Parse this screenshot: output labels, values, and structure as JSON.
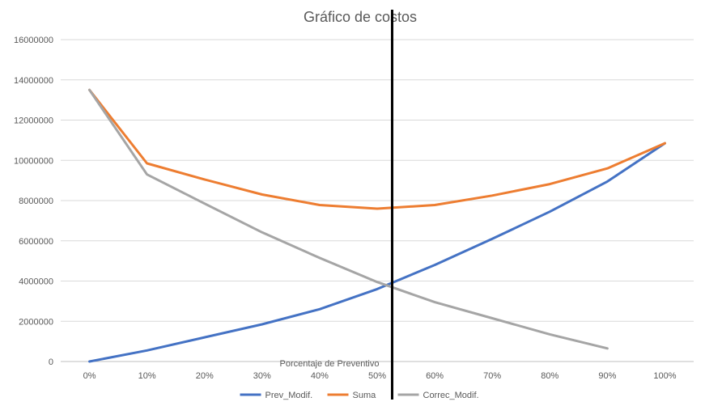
{
  "chart_data": {
    "type": "line",
    "title": "Gráfico de costos",
    "xlabel": "Porcentaje de Preventivo",
    "ylabel": "",
    "categories": [
      "0%",
      "10%",
      "20%",
      "30%",
      "40%",
      "50%",
      "60%",
      "70%",
      "80%",
      "90%",
      "100%"
    ],
    "y_ticks": [
      "0",
      "2000000",
      "4000000",
      "6000000",
      "8000000",
      "10000000",
      "12000000",
      "14000000",
      "16000000"
    ],
    "ylim": [
      0,
      16000000
    ],
    "grid": "horizontal",
    "legend_position": "bottom",
    "series": [
      {
        "name": "Prev_Modif.",
        "color": "#4472C4",
        "values": [
          0,
          550000,
          1200000,
          1850000,
          2600000,
          3600000,
          4800000,
          6100000,
          7450000,
          8950000,
          10850000
        ]
      },
      {
        "name": "Suma",
        "color": "#ED7D31",
        "values": [
          13500000,
          9850000,
          9050000,
          8300000,
          7780000,
          7600000,
          7780000,
          8250000,
          8820000,
          9600000,
          10850000
        ]
      },
      {
        "name": "Correc_Modif.",
        "color": "#A5A5A5",
        "values": [
          13500000,
          9300000,
          7850000,
          6420000,
          5150000,
          3950000,
          2950000,
          2150000,
          1350000,
          650000,
          null
        ]
      }
    ],
    "annotations": [
      {
        "type": "vertical-line",
        "x": 5.26,
        "color": "#000000"
      }
    ]
  }
}
